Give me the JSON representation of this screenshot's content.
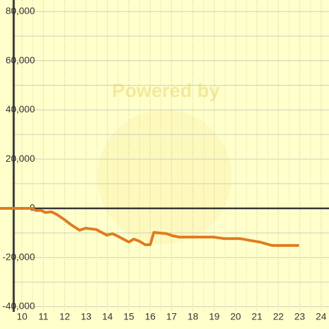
{
  "chart_data": {
    "type": "line",
    "watermark": "Powered by",
    "x": [
      8.97,
      10.5,
      10.63,
      10.87,
      11.1,
      11.37,
      11.63,
      11.97,
      12.3,
      12.7,
      12.97,
      13.47,
      13.97,
      14.23,
      14.5,
      15,
      15.23,
      15.5,
      15.77,
      16,
      16.17,
      16.77,
      17.03,
      17.37,
      18.97,
      19.47,
      20.2,
      20.7,
      21.13,
      21.7,
      22.97
    ],
    "series": [
      {
        "color": "#e07b1f",
        "values": [
          0,
          0,
          -836,
          -800,
          -1700,
          -1400,
          -2500,
          -4500,
          -6700,
          -8900,
          -8100,
          -8600,
          -10900,
          -10300,
          -11400,
          -13700,
          -12500,
          -13400,
          -14800,
          -14800,
          -9800,
          -10300,
          -11100,
          -11700,
          -11700,
          -12300,
          -12300,
          -13100,
          -13700,
          -15100,
          -15100
        ]
      }
    ],
    "xlim": [
      8.97,
      24.37
    ],
    "ylim": [
      -49060,
      84700
    ],
    "xticks": [
      10,
      11,
      12,
      13,
      14,
      15,
      16,
      17,
      18,
      19,
      20,
      21,
      22,
      23,
      24
    ],
    "yticks": [
      {
        "value": -40000,
        "label": "-40,000"
      },
      {
        "value": -20000,
        "label": "-20,000"
      },
      0,
      {
        "value": 20000,
        "label": "20,000"
      },
      {
        "value": 40000,
        "label": "40,000"
      },
      {
        "value": 60000,
        "label": "60,000"
      },
      {
        "value": 80000,
        "label": "80,000"
      }
    ],
    "yminor": [
      -30000,
      -10000,
      10000,
      30000,
      50000,
      70000
    ],
    "xminor": [
      9.5,
      10.5,
      11.5,
      12.5,
      13.5,
      14.5,
      15.5,
      16.5,
      17.5,
      18.5,
      19.5,
      20.5,
      21.5,
      22.5,
      23.5
    ],
    "grid": true
  }
}
